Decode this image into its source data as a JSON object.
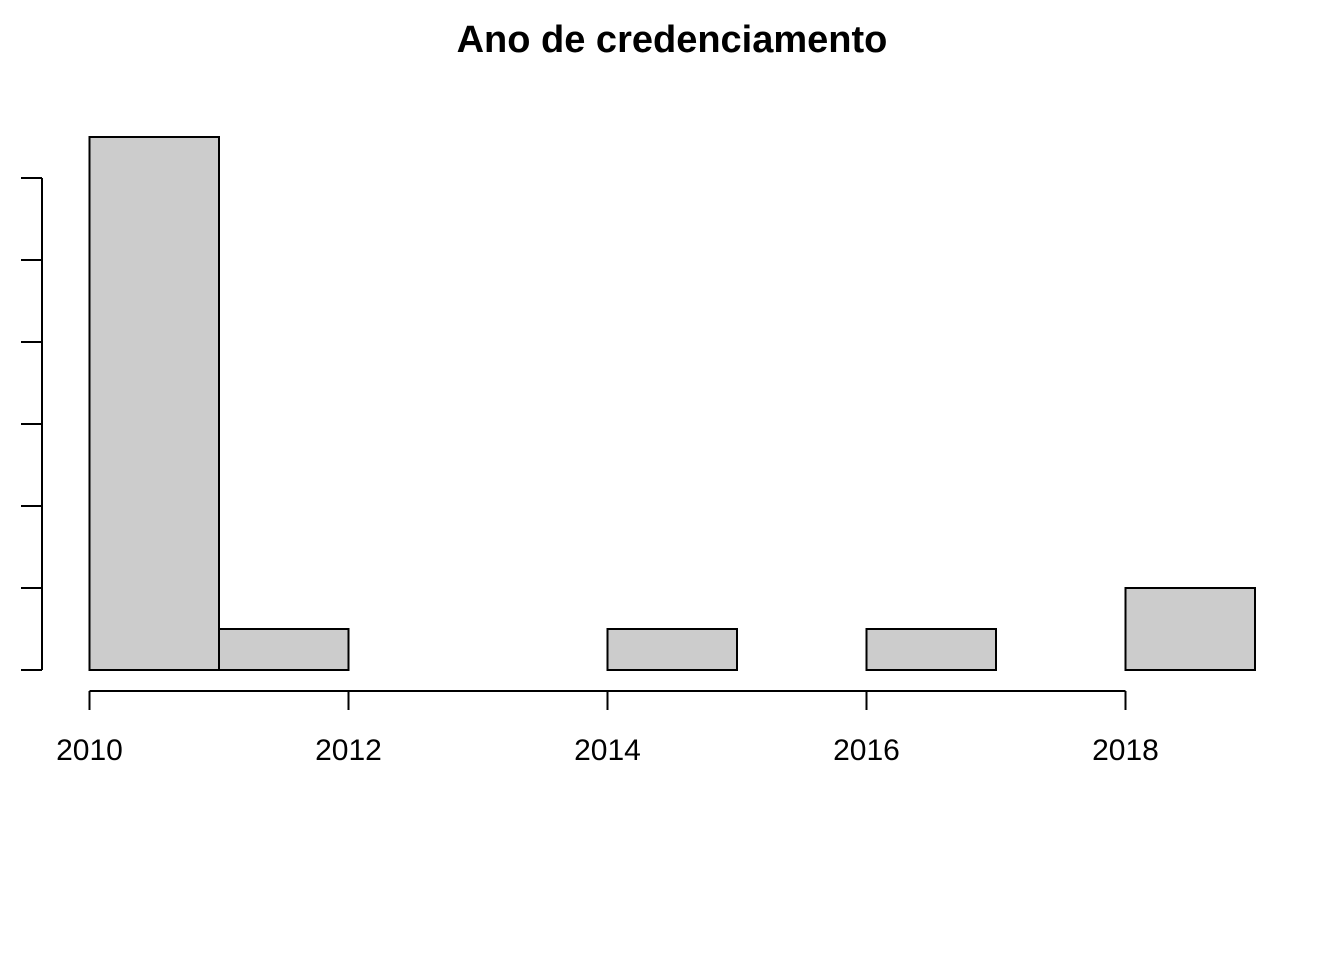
{
  "chart_data": {
    "type": "bar",
    "title": "Ano de credenciamento",
    "xlabel": "",
    "ylabel": "",
    "bins": [
      {
        "x0": 2010,
        "x1": 2011,
        "count": 13
      },
      {
        "x0": 2011,
        "x1": 2012,
        "count": 1
      },
      {
        "x0": 2012,
        "x1": 2013,
        "count": 0
      },
      {
        "x0": 2013,
        "x1": 2014,
        "count": 0
      },
      {
        "x0": 2014,
        "x1": 2015,
        "count": 1
      },
      {
        "x0": 2015,
        "x1": 2016,
        "count": 0
      },
      {
        "x0": 2016,
        "x1": 2017,
        "count": 1
      },
      {
        "x0": 2017,
        "x1": 2018,
        "count": 0
      },
      {
        "x0": 2018,
        "x1": 2019,
        "count": 2
      }
    ],
    "x_ticks": [
      2010,
      2012,
      2014,
      2016,
      2018
    ],
    "x_tick_labels": [
      "2010",
      "2012",
      "2014",
      "2016",
      "2018"
    ],
    "y_ticks": [
      0,
      2,
      4,
      6,
      8,
      10,
      12
    ],
    "xlim": [
      2010,
      2019
    ],
    "ylim": [
      0,
      13
    ],
    "bar_fill": "#cccccc",
    "bar_stroke": "#000000",
    "grid": false,
    "legend": "none"
  }
}
